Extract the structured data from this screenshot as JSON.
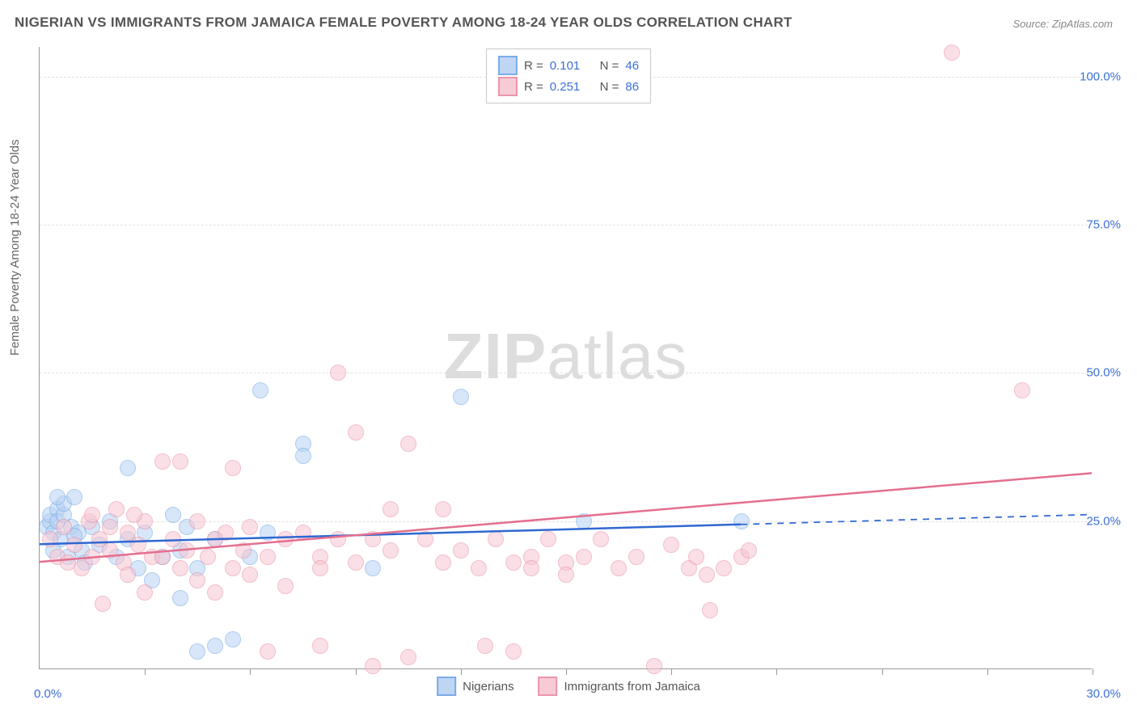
{
  "title": "NIGERIAN VS IMMIGRANTS FROM JAMAICA FEMALE POVERTY AMONG 18-24 YEAR OLDS CORRELATION CHART",
  "source": "Source: ZipAtlas.com",
  "watermark_a": "ZIP",
  "watermark_b": "atlas",
  "ylabel": "Female Poverty Among 18-24 Year Olds",
  "chart": {
    "type": "scatter",
    "xlim": [
      0,
      30
    ],
    "ylim": [
      0,
      105
    ],
    "x_tick_step": 3,
    "y_ticks": [
      25,
      50,
      75,
      100
    ],
    "y_tick_labels": [
      "25.0%",
      "50.0%",
      "75.0%",
      "100.0%"
    ],
    "x_min_label": "0.0%",
    "x_max_label": "30.0%",
    "axis_label_color": "#3b6fd6",
    "grid_color": "#e2e2e2",
    "background": "#ffffff",
    "label_fontsize": 15,
    "title_fontsize": 17,
    "marker_radius": 9
  },
  "series": [
    {
      "name": "Nigerians",
      "fill": "#b7d2f3",
      "stroke": "#6fa3e6",
      "fill_opacity": 0.55,
      "line_color": "#2f68d0",
      "line_width": 2.5,
      "R": "0.101",
      "N": "46",
      "trend": {
        "x0": 0,
        "y0": 21,
        "x1": 30,
        "y1": 26,
        "solid_until_x": 20
      },
      "points": [
        [
          0.2,
          24
        ],
        [
          0.3,
          25
        ],
        [
          0.3,
          26
        ],
        [
          0.4,
          23
        ],
        [
          0.5,
          27
        ],
        [
          0.5,
          25
        ],
        [
          0.6,
          22
        ],
        [
          0.7,
          26
        ],
        [
          0.7,
          28
        ],
        [
          0.5,
          29
        ],
        [
          0.9,
          24
        ],
        [
          0.8,
          19
        ],
        [
          0.4,
          20
        ],
        [
          1.0,
          29
        ],
        [
          1.1,
          23
        ],
        [
          1.2,
          20
        ],
        [
          1.3,
          18
        ],
        [
          1.5,
          24
        ],
        [
          1.0,
          22.5
        ],
        [
          1.7,
          21
        ],
        [
          2.0,
          25
        ],
        [
          2.2,
          19
        ],
        [
          2.5,
          34
        ],
        [
          2.5,
          22
        ],
        [
          2.8,
          17
        ],
        [
          3.0,
          23
        ],
        [
          3.2,
          15
        ],
        [
          3.5,
          19
        ],
        [
          3.8,
          26
        ],
        [
          4.0,
          20
        ],
        [
          4.0,
          12
        ],
        [
          4.2,
          24
        ],
        [
          4.5,
          17
        ],
        [
          4.5,
          3
        ],
        [
          5.0,
          22
        ],
        [
          5.0,
          4
        ],
        [
          5.5,
          5
        ],
        [
          6.0,
          19
        ],
        [
          6.3,
          47
        ],
        [
          6.5,
          23
        ],
        [
          7.5,
          38
        ],
        [
          7.5,
          36
        ],
        [
          9.5,
          17
        ],
        [
          12.0,
          46
        ],
        [
          15.5,
          25.0
        ],
        [
          20.0,
          25
        ]
      ]
    },
    {
      "name": "Immigrants from Jamaica",
      "fill": "#f6c6d2",
      "stroke": "#e98ba2",
      "fill_opacity": 0.55,
      "line_color": "#e36f8e",
      "line_width": 2.5,
      "R": "0.251",
      "N": "86",
      "trend": {
        "x0": 0,
        "y0": 18,
        "x1": 30,
        "y1": 33,
        "solid_until_x": 30
      },
      "points": [
        [
          0.3,
          22
        ],
        [
          0.5,
          19
        ],
        [
          0.7,
          24
        ],
        [
          0.8,
          18
        ],
        [
          1.0,
          21
        ],
        [
          1.2,
          17
        ],
        [
          1.4,
          25
        ],
        [
          1.5,
          19
        ],
        [
          1.5,
          26
        ],
        [
          1.7,
          22
        ],
        [
          1.8,
          11
        ],
        [
          2.0,
          24
        ],
        [
          2.0,
          20
        ],
        [
          2.2,
          27
        ],
        [
          2.4,
          18
        ],
        [
          2.5,
          23
        ],
        [
          2.5,
          16
        ],
        [
          2.8,
          21
        ],
        [
          3.0,
          25
        ],
        [
          3.0,
          13
        ],
        [
          3.2,
          19
        ],
        [
          3.5,
          19
        ],
        [
          3.5,
          35
        ],
        [
          3.8,
          22
        ],
        [
          4.0,
          17
        ],
        [
          4.0,
          35
        ],
        [
          4.2,
          20
        ],
        [
          4.5,
          25
        ],
        [
          4.5,
          15
        ],
        [
          4.8,
          19
        ],
        [
          5.0,
          22
        ],
        [
          5.0,
          13
        ],
        [
          5.3,
          23
        ],
        [
          5.5,
          17
        ],
        [
          5.8,
          20
        ],
        [
          5.5,
          34
        ],
        [
          6.0,
          24
        ],
        [
          6.0,
          16
        ],
        [
          6.5,
          19
        ],
        [
          6.5,
          3
        ],
        [
          7.0,
          22
        ],
        [
          7.0,
          14
        ],
        [
          7.5,
          23
        ],
        [
          8.0,
          19
        ],
        [
          8.0,
          17
        ],
        [
          8.5,
          22
        ],
        [
          8.0,
          4
        ],
        [
          8.5,
          50
        ],
        [
          9.0,
          18
        ],
        [
          9.0,
          40
        ],
        [
          9.5,
          22
        ],
        [
          9.5,
          0.5
        ],
        [
          10.0,
          20
        ],
        [
          10.0,
          27
        ],
        [
          10.5,
          38
        ],
        [
          10.5,
          2
        ],
        [
          11.0,
          22
        ],
        [
          11.5,
          18
        ],
        [
          11.5,
          27
        ],
        [
          12.0,
          20
        ],
        [
          12.5,
          17
        ],
        [
          13.0,
          22
        ],
        [
          12.7,
          4
        ],
        [
          13.5,
          18
        ],
        [
          13.5,
          3
        ],
        [
          14.0,
          19
        ],
        [
          14.0,
          17
        ],
        [
          14.5,
          22
        ],
        [
          15.0,
          18
        ],
        [
          15.0,
          16
        ],
        [
          15.5,
          19
        ],
        [
          16.0,
          22
        ],
        [
          16.5,
          17
        ],
        [
          17.0,
          19
        ],
        [
          17.5,
          0.5
        ],
        [
          18.0,
          21
        ],
        [
          18.5,
          17
        ],
        [
          18.7,
          19
        ],
        [
          19.0,
          16
        ],
        [
          19.1,
          10
        ],
        [
          19.5,
          17
        ],
        [
          20.0,
          19
        ],
        [
          20.2,
          20
        ],
        [
          26.0,
          104
        ],
        [
          28.0,
          47
        ],
        [
          2.7,
          26
        ]
      ]
    }
  ],
  "legend_top": {
    "r_label": "R =",
    "n_label": "N ="
  },
  "legend_bottom": {
    "series1": "Nigerians",
    "series2": "Immigrants from Jamaica"
  }
}
